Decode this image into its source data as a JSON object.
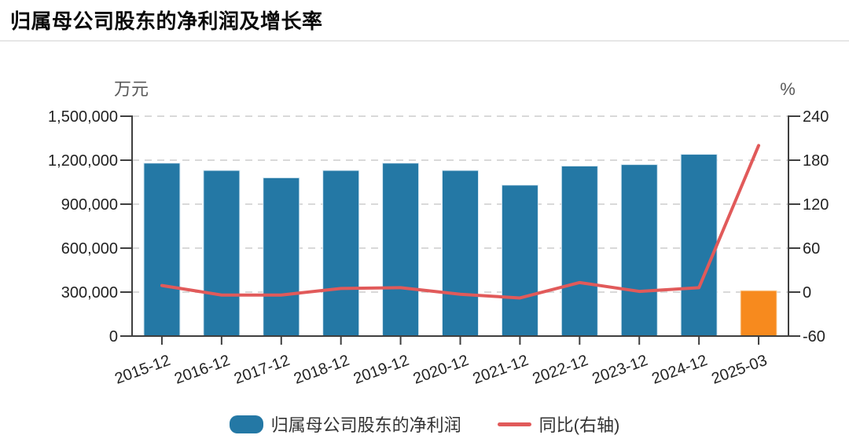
{
  "header": {
    "title": "归属母公司股东的净利润及增长率"
  },
  "chart_data": {
    "type": "bar+line",
    "title": "归属母公司股东的净利润及增长率",
    "categories": [
      "2015-12",
      "2016-12",
      "2017-12",
      "2018-12",
      "2019-12",
      "2020-12",
      "2021-12",
      "2022-12",
      "2023-12",
      "2024-12",
      "2025-03"
    ],
    "series": [
      {
        "name": "归属母公司股东的净利润",
        "type": "bar",
        "y_axis": "left",
        "unit": "万元",
        "color": "#2478a5",
        "highlight": {
          "index": 10,
          "color": "#f78a1e"
        },
        "values": [
          1180000,
          1130000,
          1080000,
          1130000,
          1180000,
          1130000,
          1030000,
          1160000,
          1170000,
          1240000,
          310000
        ]
      },
      {
        "name": "同比(右轴)",
        "type": "line",
        "y_axis": "right",
        "unit": "%",
        "color": "#e15a5a",
        "values": [
          9,
          -4,
          -4,
          5,
          6,
          -3,
          -8,
          13,
          1,
          6,
          200
        ]
      }
    ],
    "left_axis": {
      "unit": "万元",
      "min": 0,
      "max": 1500000,
      "tick_values": [
        0,
        300000,
        600000,
        900000,
        1200000,
        1500000
      ],
      "tick_labels": [
        "0",
        "300,000",
        "600,000",
        "900,000",
        "1,200,000",
        "1,500,000"
      ]
    },
    "right_axis": {
      "unit": "%",
      "min": -60,
      "max": 240,
      "tick_values": [
        -60,
        0,
        60,
        120,
        180,
        240
      ],
      "tick_labels": [
        "-60",
        "0",
        "60",
        "120",
        "180",
        "240"
      ]
    },
    "grid": "horizontal-dashed",
    "legend_position": "bottom"
  },
  "legend": {
    "items": [
      {
        "label": "归属母公司股东的净利润",
        "swatch": "bar",
        "color": "#2478a5"
      },
      {
        "label": "同比(右轴)",
        "swatch": "line",
        "color": "#e15a5a"
      }
    ]
  },
  "colors": {
    "bar": "#2478a5",
    "bar_highlight": "#f78a1e",
    "bar_edge": "#d8e9f3",
    "bar_highlight_edge": "#fbdcb4",
    "line": "#e15a5a",
    "axis": "#3f3f3f",
    "grid": "#d9d9d9",
    "divider": "#e6e6e6",
    "title_text": "#0a0a0a",
    "tick_text": "#222222",
    "unit_text": "#595959",
    "legend_text": "#333333"
  }
}
